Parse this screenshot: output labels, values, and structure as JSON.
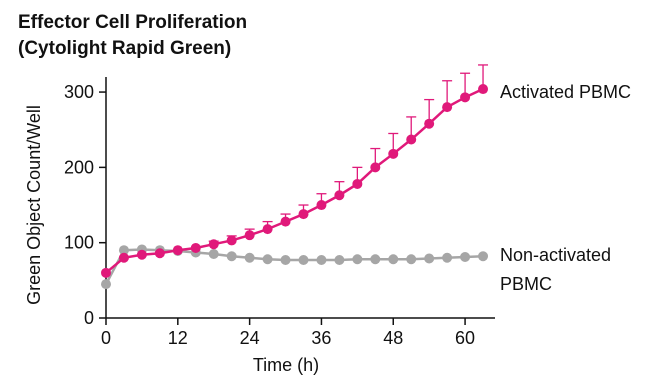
{
  "chart_data": {
    "type": "line",
    "title_lines": [
      "Effector Cell Proliferation",
      "(Cytolight Rapid Green)"
    ],
    "xlabel": "Time (h)",
    "ylabel": "Green Object Count/Well",
    "xlim": [
      0,
      65
    ],
    "ylim": [
      0,
      320
    ],
    "xticks": [
      0,
      12,
      24,
      36,
      48,
      60
    ],
    "yticks": [
      0,
      100,
      200,
      300
    ],
    "grid": false,
    "legend": "direct labels at right end of each series",
    "series": [
      {
        "name": "Activated PBMC",
        "color": "#e0197a",
        "x": [
          0,
          3,
          6,
          9,
          12,
          15,
          18,
          21,
          24,
          27,
          30,
          33,
          36,
          39,
          42,
          45,
          48,
          51,
          54,
          57,
          60,
          63
        ],
        "y": [
          60,
          80,
          84,
          86,
          90,
          93,
          98,
          103,
          110,
          118,
          128,
          138,
          150,
          163,
          178,
          200,
          218,
          237,
          258,
          280,
          293,
          304
        ],
        "error": [
          0,
          0,
          0,
          0,
          0,
          0,
          4,
          6,
          8,
          10,
          10,
          12,
          15,
          18,
          22,
          25,
          27,
          30,
          32,
          35,
          32,
          32
        ]
      },
      {
        "name": "Non-activated PBMC",
        "label_lines": [
          "Non-activated",
          "PBMC"
        ],
        "color": "#a6a6a6",
        "x": [
          0,
          3,
          6,
          9,
          12,
          15,
          18,
          21,
          24,
          27,
          30,
          33,
          36,
          39,
          42,
          45,
          48,
          51,
          54,
          57,
          60,
          63
        ],
        "y": [
          45,
          90,
          91,
          90,
          89,
          87,
          85,
          82,
          80,
          78,
          77,
          77,
          77,
          77,
          78,
          78,
          78,
          78,
          79,
          80,
          81,
          82
        ]
      }
    ]
  }
}
